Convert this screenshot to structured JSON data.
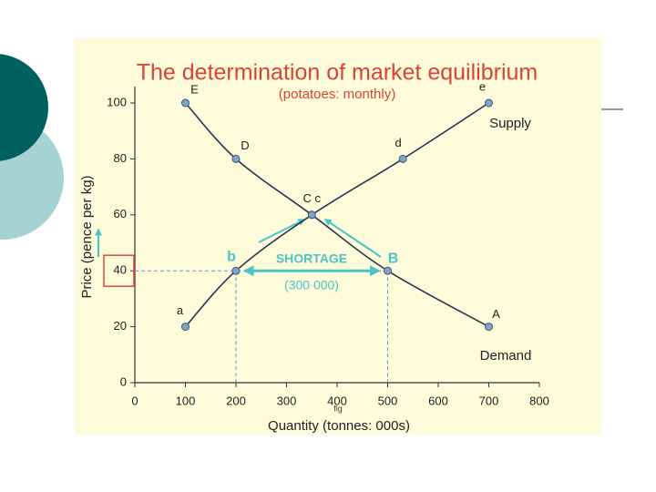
{
  "chart_data": {
    "type": "line",
    "title": "The determination of market equilibrium",
    "subtitle": "(potatoes: monthly)",
    "x_label": "Quantity (tonnes: 000s)",
    "y_label": "Price (pence per kg)",
    "xlim": [
      0,
      800
    ],
    "xticks": [
      0,
      100,
      200,
      300,
      400,
      500,
      600,
      700,
      800
    ],
    "ylim": [
      0,
      100
    ],
    "yticks": [
      0,
      20,
      40,
      60,
      80,
      100
    ],
    "series": [
      {
        "name": "Supply",
        "color": "#2b3550",
        "x": [
          100,
          200,
          350,
          530,
          700
        ],
        "values": [
          20,
          40,
          60,
          80,
          100
        ],
        "point_labels": [
          "a",
          "b",
          null,
          "d",
          "e"
        ]
      },
      {
        "name": "Demand",
        "color": "#2b3550",
        "x": [
          100,
          200,
          350,
          500,
          700
        ],
        "values": [
          100,
          80,
          60,
          40,
          20
        ],
        "point_labels": [
          "E",
          "D",
          "C c",
          "B",
          "A"
        ]
      }
    ],
    "annotations": {
      "shortage": "SHORTAGE",
      "shortage_amount": "(300 000)",
      "fig": "fig"
    }
  }
}
